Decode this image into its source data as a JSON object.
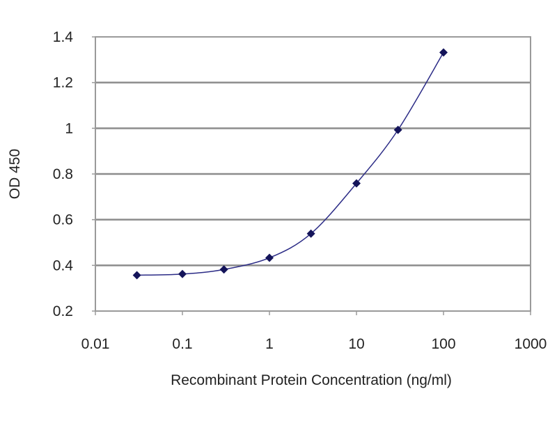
{
  "chart_data": {
    "type": "line",
    "title": "",
    "xlabel": "Recombinant Protein Concentration (ng/ml)",
    "ylabel": "OD 450",
    "x_scale": "log",
    "xlim": [
      0.01,
      1000
    ],
    "ylim": [
      0.2,
      1.4
    ],
    "x_ticks": [
      "0.01",
      "0.1",
      "1",
      "10",
      "100",
      "1000"
    ],
    "y_ticks": [
      "0.2",
      "0.4",
      "0.6",
      "0.8",
      "1",
      "1.2",
      "1.4"
    ],
    "grid": "horizontal",
    "legend": "none",
    "series": [
      {
        "x": [
          0.03,
          0.1,
          0.3,
          1,
          3,
          10,
          30,
          100
        ],
        "y": [
          0.357,
          0.362,
          0.382,
          0.433,
          0.539,
          0.759,
          0.993,
          1.332
        ],
        "color": "#2b2b86",
        "marker": "diamond",
        "marker_color": "#14145a"
      }
    ],
    "grid_color": "#8c8c8c"
  }
}
